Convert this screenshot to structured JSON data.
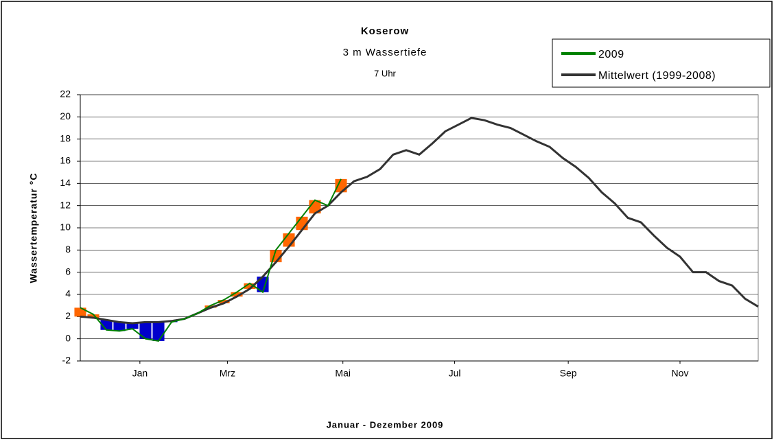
{
  "chart_data": {
    "type": "line",
    "title": "Koserow",
    "subtitle": "3 m Wassertiefe",
    "annotation": "7 Uhr",
    "y_label": "Wassertemperatur °C",
    "x_label": "Januar - Dezember 2009",
    "x": [
      1,
      8,
      15,
      22,
      29,
      36,
      43,
      50,
      57,
      64,
      71,
      78,
      85,
      92,
      99,
      106,
      113,
      120,
      127,
      134,
      141,
      148,
      155,
      162,
      169,
      176,
      183,
      190,
      197,
      204,
      211,
      218,
      225,
      232,
      239,
      246,
      253,
      260,
      267,
      274,
      281,
      288,
      295,
      302,
      309,
      316,
      323,
      330,
      337,
      344,
      351,
      358,
      365
    ],
    "xlim": [
      1,
      365
    ],
    "xticks": [
      {
        "value": 33,
        "label": "Jan"
      },
      {
        "value": 80,
        "label": "Mrz"
      },
      {
        "value": 142,
        "label": "Mai"
      },
      {
        "value": 202,
        "label": "Jul"
      },
      {
        "value": 263,
        "label": "Sep"
      },
      {
        "value": 323,
        "label": "Nov"
      }
    ],
    "ylim": [
      -2,
      22
    ],
    "yticks": [
      -2,
      0,
      2,
      4,
      6,
      8,
      10,
      12,
      14,
      16,
      18,
      20,
      22
    ],
    "grid": true,
    "fill_above": "#ff6600",
    "fill_below": "#0000cc",
    "series": [
      {
        "name": "2009",
        "color": "#008000",
        "values": [
          2.8,
          2.2,
          0.8,
          0.7,
          0.9,
          0.0,
          -0.2,
          1.5,
          1.8,
          2.3,
          3.0,
          3.5,
          4.2,
          5.0,
          4.2,
          8.0,
          9.5,
          11.0,
          12.5,
          12.0,
          14.4,
          null,
          null,
          null,
          null,
          null,
          null,
          null,
          null,
          null,
          null,
          null,
          null,
          null,
          null,
          null,
          null,
          null,
          null,
          null,
          null,
          null,
          null,
          null,
          null,
          null,
          null,
          null,
          null,
          null,
          null,
          null,
          null
        ]
      },
      {
        "name": "Mittelwert (1999-2008)",
        "color": "#333333",
        "values": [
          2.0,
          1.9,
          1.7,
          1.5,
          1.4,
          1.5,
          1.5,
          1.6,
          1.8,
          2.3,
          2.8,
          3.2,
          3.8,
          4.5,
          5.6,
          6.9,
          8.3,
          9.8,
          11.3,
          12.0,
          13.2,
          14.2,
          14.6,
          15.3,
          16.6,
          17.0,
          16.6,
          17.6,
          18.7,
          19.3,
          19.9,
          19.7,
          19.3,
          19.0,
          18.4,
          17.8,
          17.3,
          16.3,
          15.5,
          14.5,
          13.2,
          12.2,
          10.9,
          10.5,
          9.3,
          8.2,
          7.4,
          6.0,
          6.0,
          5.2,
          4.8,
          3.6,
          2.9
        ]
      }
    ],
    "legend": "top-right"
  }
}
